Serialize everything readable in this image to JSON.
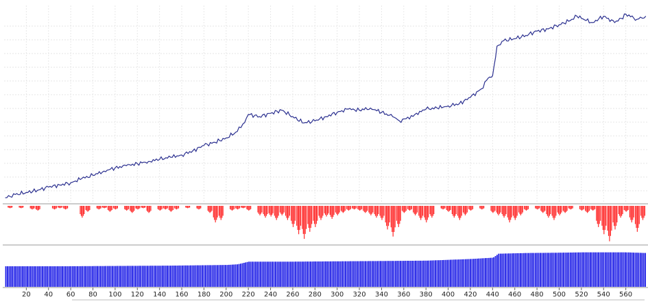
{
  "chart_data": [
    {
      "type": "line",
      "panel": "balance",
      "grid": true,
      "color": "#2a2f8f",
      "x": [
        1,
        10,
        20,
        30,
        40,
        50,
        60,
        70,
        80,
        90,
        100,
        110,
        120,
        130,
        140,
        150,
        160,
        170,
        180,
        190,
        200,
        210,
        215,
        220,
        230,
        240,
        250,
        260,
        270,
        280,
        290,
        300,
        310,
        320,
        330,
        340,
        350,
        356,
        362,
        370,
        380,
        390,
        400,
        410,
        420,
        430,
        436,
        440,
        444,
        450,
        460,
        470,
        480,
        490,
        500,
        510,
        516,
        520,
        530,
        540,
        550,
        556,
        560,
        570,
        578
      ],
      "y": [
        100,
        103,
        105,
        107,
        110,
        112,
        114,
        118,
        121,
        125,
        128,
        130,
        132,
        134,
        136,
        138,
        140,
        144,
        149,
        152,
        156,
        162,
        169,
        178,
        176,
        179,
        182,
        176,
        170,
        172,
        176,
        180,
        183,
        182,
        184,
        180,
        176,
        172,
        174,
        178,
        183,
        184,
        186,
        188,
        194,
        202,
        212,
        214,
        242,
        247,
        249,
        252,
        256,
        258,
        262,
        266,
        270,
        268,
        264,
        270,
        264,
        268,
        272,
        267,
        270
      ],
      "ylim": [
        95,
        280
      ],
      "xlim": [
        0,
        580
      ]
    },
    {
      "type": "bar",
      "panel": "drawdown",
      "color": "#ff2a2a",
      "x": [
        5,
        15,
        25,
        30,
        45,
        50,
        55,
        70,
        75,
        85,
        90,
        95,
        100,
        110,
        115,
        120,
        125,
        130,
        140,
        145,
        150,
        155,
        165,
        175,
        185,
        190,
        195,
        205,
        210,
        215,
        220,
        230,
        235,
        240,
        245,
        250,
        255,
        260,
        265,
        270,
        275,
        280,
        285,
        290,
        295,
        300,
        305,
        310,
        315,
        320,
        325,
        330,
        335,
        340,
        345,
        350,
        355,
        360,
        365,
        370,
        375,
        380,
        385,
        395,
        400,
        405,
        410,
        415,
        420,
        430,
        440,
        445,
        450,
        455,
        460,
        465,
        470,
        480,
        485,
        490,
        495,
        500,
        505,
        510,
        520,
        525,
        530,
        535,
        540,
        545,
        550,
        555,
        560,
        565,
        570,
        575
      ],
      "values": [
        -2,
        -2,
        -3,
        -4,
        -3,
        -2,
        -3,
        -10,
        -5,
        -3,
        -2,
        -5,
        -3,
        -4,
        -6,
        -3,
        -2,
        -6,
        -4,
        -3,
        -5,
        -3,
        -2,
        -3,
        -6,
        -14,
        -12,
        -4,
        -3,
        -2,
        -4,
        -8,
        -10,
        -9,
        -12,
        -8,
        -12,
        -18,
        -24,
        -28,
        -22,
        -18,
        -12,
        -9,
        -11,
        -8,
        -6,
        -4,
        -3,
        -4,
        -6,
        -8,
        -10,
        -12,
        -20,
        -26,
        -18,
        -6,
        -4,
        -8,
        -12,
        -14,
        -10,
        -3,
        -5,
        -10,
        -12,
        -8,
        -4,
        -3,
        -6,
        -8,
        -10,
        -14,
        -12,
        -8,
        -4,
        -3,
        -6,
        -10,
        -12,
        -8,
        -6,
        -3,
        -4,
        -6,
        -4,
        -18,
        -24,
        -30,
        -20,
        -10,
        -5,
        -14,
        -22,
        -12
      ],
      "ylim": [
        -32,
        0
      ],
      "xlim": [
        0,
        580
      ]
    },
    {
      "type": "bar",
      "panel": "lots",
      "color": "#1a1ae6",
      "x": [
        1,
        50,
        100,
        150,
        200,
        210,
        220,
        260,
        300,
        340,
        380,
        420,
        440,
        445,
        470,
        500,
        520,
        540,
        560,
        578
      ],
      "values": [
        31,
        31,
        31.5,
        32,
        33,
        34,
        38,
        38,
        38.5,
        39,
        39.5,
        42,
        44,
        50,
        51,
        51.5,
        52,
        52,
        52,
        51
      ],
      "ylim": [
        0,
        60
      ],
      "xlim": [
        0,
        580
      ]
    }
  ],
  "x_axis": {
    "tick_labels": [
      "20",
      "40",
      "60",
      "80",
      "100",
      "120",
      "140",
      "160",
      "180",
      "200",
      "220",
      "240",
      "260",
      "280",
      "300",
      "320",
      "340",
      "360",
      "380",
      "400",
      "420",
      "440",
      "460",
      "480",
      "500",
      "520",
      "540",
      "560"
    ]
  }
}
